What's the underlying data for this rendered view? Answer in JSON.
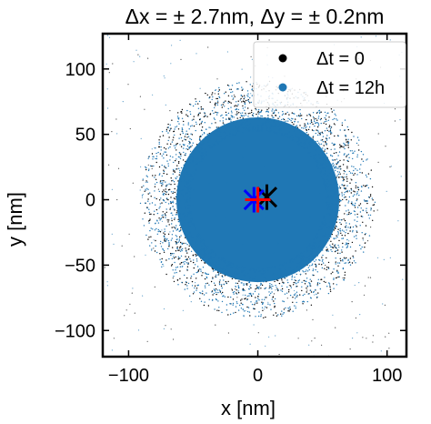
{
  "chart_data": {
    "type": "scatter",
    "title": "Δx = ± 2.7nm, Δy = ± 0.2nm",
    "xlabel": "x [nm]",
    "ylabel": "y [nm]",
    "xlim": [
      -120,
      115
    ],
    "ylim": [
      -120,
      127
    ],
    "xticks": [
      -100,
      0,
      100
    ],
    "yticks": [
      -100,
      -50,
      0,
      50,
      100
    ],
    "xtick_labels": [
      "−100",
      "0",
      "100"
    ],
    "ytick_labels": [
      "−100",
      "−50",
      "0",
      "50",
      "100"
    ],
    "grid": false,
    "legend_position": "top-right",
    "series": [
      {
        "name": "Δt = 0",
        "color": "#000000",
        "center": [
          0,
          0
        ],
        "approx_radius": 70
      },
      {
        "name": "Δt = 12h",
        "color": "#1f77b4",
        "center": [
          0,
          0
        ],
        "approx_radius": 70
      }
    ],
    "markers": [
      {
        "label": "",
        "color": "#000000",
        "x": 7,
        "y": 2,
        "shape": "asterisk"
      },
      {
        "label": "",
        "color": "#0000ff",
        "x": -3,
        "y": 0,
        "shape": "asterisk"
      },
      {
        "label": "",
        "color": "#ff0000",
        "x": 0,
        "y": 0,
        "shape": "plus"
      }
    ]
  }
}
